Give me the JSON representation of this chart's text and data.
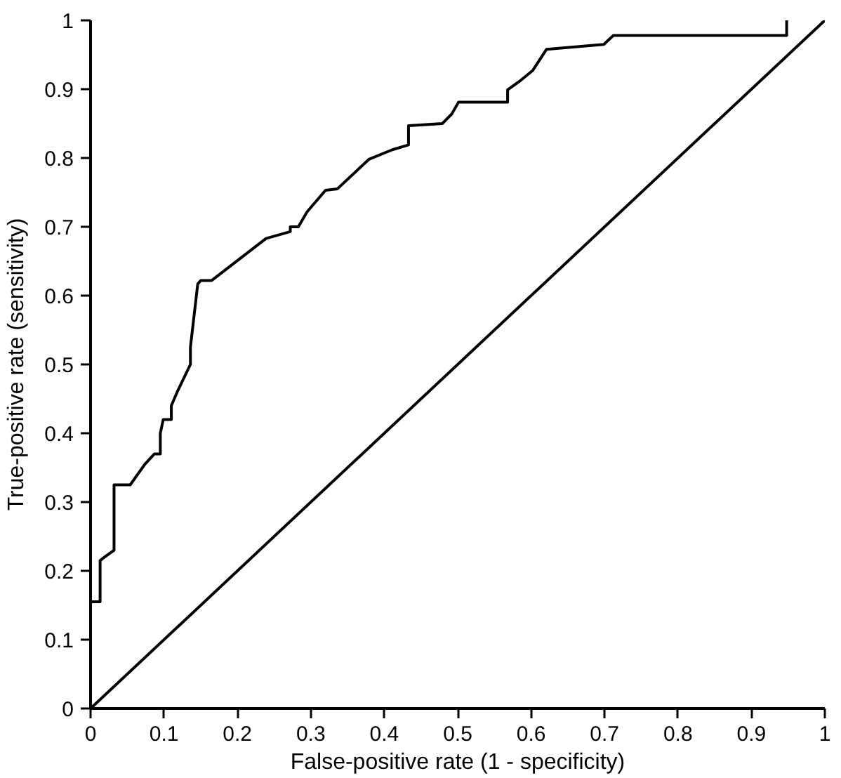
{
  "chart_data": {
    "type": "line",
    "xlabel": "False-positive rate (1 - specificity)",
    "ylabel": "True-positive rate (sensitivity)",
    "xlim": [
      0,
      1
    ],
    "ylim": [
      0,
      1
    ],
    "xticks": [
      0,
      0.1,
      0.2,
      0.3,
      0.4,
      0.5,
      0.6,
      0.7,
      0.8,
      0.9,
      1
    ],
    "yticks": [
      0,
      0.1,
      0.2,
      0.3,
      0.4,
      0.5,
      0.6,
      0.7,
      0.8,
      0.9,
      1
    ],
    "marker": "none",
    "line_style": "solid",
    "series": [
      {
        "color": "#000000",
        "x": [
          0,
          0,
          0.013,
          0.013,
          0.019,
          0.032,
          0.032,
          0.054,
          0.074,
          0.087,
          0.095,
          0.095,
          0.099,
          0.11,
          0.11,
          0.118,
          0.136,
          0.136,
          0.146,
          0.15,
          0.165,
          0.239,
          0.272,
          0.272,
          0.283,
          0.295,
          0.32,
          0.336,
          0.379,
          0.411,
          0.433,
          0.433,
          0.479,
          0.492,
          0.501,
          0.568,
          0.568,
          0.586,
          0.602,
          0.621,
          0.699,
          0.712,
          0.948,
          0.948
        ],
        "values": [
          0,
          0.155,
          0.155,
          0.215,
          0.22,
          0.23,
          0.325,
          0.325,
          0.355,
          0.37,
          0.37,
          0.4,
          0.42,
          0.42,
          0.44,
          0.46,
          0.5,
          0.525,
          0.617,
          0.622,
          0.622,
          0.683,
          0.693,
          0.7,
          0.7,
          0.722,
          0.753,
          0.755,
          0.798,
          0.812,
          0.819,
          0.847,
          0.85,
          0.864,
          0.881,
          0.881,
          0.899,
          0.913,
          0.927,
          0.958,
          0.965,
          0.978,
          0.978,
          1.0
        ]
      },
      {
        "color": "#000000",
        "x": [
          0,
          1
        ],
        "values": [
          0,
          1
        ]
      }
    ]
  }
}
